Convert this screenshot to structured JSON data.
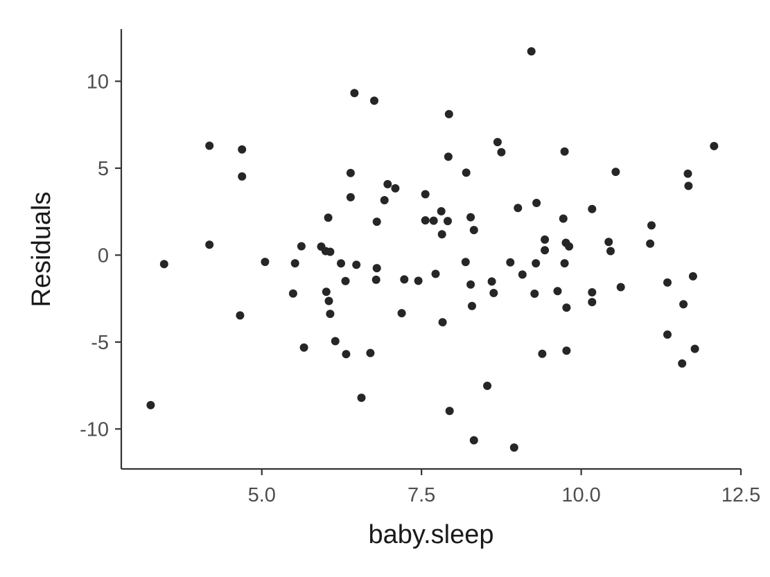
{
  "chart_data": {
    "type": "scatter",
    "title": "",
    "xlabel": "baby.sleep",
    "ylabel": "Residuals",
    "xlim": [
      2.8,
      12.5
    ],
    "ylim": [
      -12.3,
      13.0
    ],
    "grid": false,
    "legend": "none",
    "point_color": "#262626",
    "x_ticks": [
      {
        "value": 5.0,
        "label": "5.0"
      },
      {
        "value": 7.5,
        "label": "7.5"
      },
      {
        "value": 10.0,
        "label": "10.0"
      },
      {
        "value": 12.5,
        "label": "12.5"
      }
    ],
    "y_ticks": [
      {
        "value": -10,
        "label": "-10"
      },
      {
        "value": -5,
        "label": "-5"
      },
      {
        "value": 0,
        "label": "0"
      },
      {
        "value": 5,
        "label": "5"
      },
      {
        "value": 10,
        "label": "10"
      }
    ],
    "points": [
      [
        9.22,
        11.72
      ],
      [
        6.45,
        9.32
      ],
      [
        6.76,
        8.88
      ],
      [
        7.93,
        8.11
      ],
      [
        8.69,
        6.5
      ],
      [
        4.18,
        6.29
      ],
      [
        4.69,
        6.08
      ],
      [
        8.75,
        5.92
      ],
      [
        9.74,
        5.96
      ],
      [
        12.08,
        6.27
      ],
      [
        7.92,
        5.66
      ],
      [
        4.69,
        4.52
      ],
      [
        6.39,
        4.72
      ],
      [
        8.2,
        4.74
      ],
      [
        10.54,
        4.79
      ],
      [
        11.67,
        4.68
      ],
      [
        6.97,
        4.08
      ],
      [
        7.09,
        3.84
      ],
      [
        11.68,
        3.98
      ],
      [
        7.56,
        3.5
      ],
      [
        6.39,
        3.33
      ],
      [
        6.92,
        3.16
      ],
      [
        9.3,
        3.0
      ],
      [
        9.01,
        2.71
      ],
      [
        10.17,
        2.65
      ],
      [
        7.81,
        2.52
      ],
      [
        8.27,
        2.18
      ],
      [
        6.04,
        2.15
      ],
      [
        9.72,
        2.1
      ],
      [
        7.56,
        2.0
      ],
      [
        7.69,
        1.98
      ],
      [
        7.91,
        1.96
      ],
      [
        6.8,
        1.92
      ],
      [
        11.1,
        1.71
      ],
      [
        8.32,
        1.44
      ],
      [
        7.82,
        1.2
      ],
      [
        9.43,
        0.89
      ],
      [
        10.43,
        0.76
      ],
      [
        9.76,
        0.71
      ],
      [
        11.08,
        0.66
      ],
      [
        4.18,
        0.6
      ],
      [
        5.62,
        0.51
      ],
      [
        5.93,
        0.49
      ],
      [
        9.81,
        0.5
      ],
      [
        6.0,
        0.23
      ],
      [
        6.07,
        0.19
      ],
      [
        9.43,
        0.28
      ],
      [
        10.46,
        0.23
      ],
      [
        3.47,
        -0.52
      ],
      [
        5.05,
        -0.39
      ],
      [
        5.52,
        -0.47
      ],
      [
        6.24,
        -0.48
      ],
      [
        6.48,
        -0.56
      ],
      [
        8.19,
        -0.4
      ],
      [
        8.89,
        -0.42
      ],
      [
        9.29,
        -0.47
      ],
      [
        9.74,
        -0.47
      ],
      [
        6.8,
        -0.75
      ],
      [
        7.72,
        -1.08
      ],
      [
        9.08,
        -1.12
      ],
      [
        11.75,
        -1.22
      ],
      [
        6.79,
        -1.42
      ],
      [
        7.23,
        -1.4
      ],
      [
        7.45,
        -1.48
      ],
      [
        6.31,
        -1.49
      ],
      [
        8.6,
        -1.52
      ],
      [
        11.35,
        -1.58
      ],
      [
        8.27,
        -1.69
      ],
      [
        10.62,
        -1.84
      ],
      [
        5.49,
        -2.21
      ],
      [
        6.01,
        -2.11
      ],
      [
        8.63,
        -2.18
      ],
      [
        9.27,
        -2.22
      ],
      [
        9.63,
        -2.07
      ],
      [
        10.17,
        -2.14
      ],
      [
        6.05,
        -2.64
      ],
      [
        10.17,
        -2.7
      ],
      [
        11.6,
        -2.83
      ],
      [
        8.29,
        -2.93
      ],
      [
        9.77,
        -3.02
      ],
      [
        7.19,
        -3.34
      ],
      [
        6.07,
        -3.38
      ],
      [
        4.66,
        -3.47
      ],
      [
        7.83,
        -3.86
      ],
      [
        11.35,
        -4.57
      ],
      [
        6.15,
        -4.95
      ],
      [
        5.66,
        -5.32
      ],
      [
        9.77,
        -5.5
      ],
      [
        11.78,
        -5.39
      ],
      [
        6.32,
        -5.7
      ],
      [
        6.7,
        -5.63
      ],
      [
        9.39,
        -5.68
      ],
      [
        11.58,
        -6.23
      ],
      [
        8.53,
        -7.52
      ],
      [
        6.56,
        -8.21
      ],
      [
        3.26,
        -8.63
      ],
      [
        7.94,
        -8.96
      ],
      [
        8.32,
        -10.65
      ],
      [
        8.95,
        -11.07
      ]
    ]
  }
}
